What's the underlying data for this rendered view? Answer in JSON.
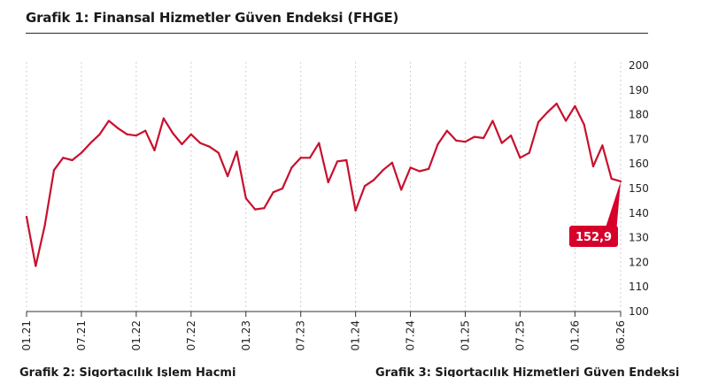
{
  "chart_data": {
    "type": "line",
    "title": "Grafik 1: Finansal Hizmetler Güven Endeksi (FHGE)",
    "xlabel": "",
    "ylabel": "",
    "ylim": [
      100,
      200
    ],
    "yticks": [
      100,
      110,
      120,
      130,
      140,
      150,
      160,
      170,
      180,
      190,
      200
    ],
    "xtick_labels": [
      "01.21",
      "07.21",
      "01.22",
      "07.22",
      "01.23",
      "07.23",
      "01.24",
      "07.24",
      "01.25",
      "07.25",
      "01.26",
      "06.26"
    ],
    "grid": "vertical",
    "series": [
      {
        "color": "#c8102e",
        "values": [
          138.5,
          118.5,
          135,
          157.5,
          162.5,
          161.5,
          164.5,
          168.5,
          172,
          177.5,
          174.5,
          172,
          171.5,
          173.5,
          165.5,
          178.5,
          172.5,
          168,
          172,
          168.5,
          167,
          164.5,
          155,
          165,
          146,
          141.5,
          142,
          148.5,
          150,
          158.5,
          162.5,
          162.5,
          168.5,
          152.5,
          161,
          161.5,
          141,
          151,
          153.5,
          157.5,
          160.5,
          149.5,
          158.5,
          157,
          158,
          168,
          173.5,
          169.5,
          169,
          171,
          170.5,
          177.5,
          168.5,
          171.5,
          162.5,
          164.5,
          177,
          181,
          184.5,
          177.5,
          183.5,
          176,
          159,
          167.5,
          154,
          152.9
        ]
      }
    ],
    "callout": {
      "label": "152,9",
      "color": "#d6002a"
    }
  },
  "footer": {
    "left_cut": "Grafik 2: Sigortacılık İşlem Hacmi",
    "right_cut": "Grafik 3: Sigortacılık Hizmetleri Güven Endeksi"
  }
}
